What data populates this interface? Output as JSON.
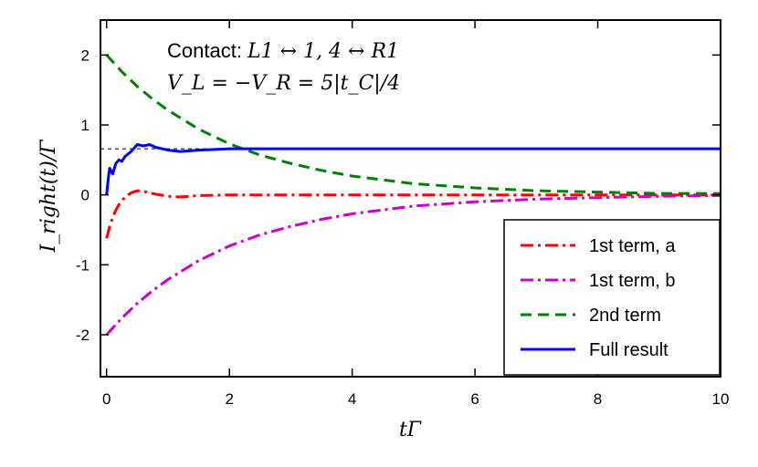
{
  "chart_data": {
    "type": "line",
    "xlabel": "tΓ",
    "ylabel": "I_right(t)/Γ",
    "annotation": {
      "prefix": "Contact: ",
      "contact_math": "L1 ↔ 1, 4 ↔ R1",
      "voltage": "V_L = −V_R = 5|t_C|/4"
    },
    "xlim": [
      -0.1,
      10
    ],
    "ylim": [
      -2.6,
      2.5
    ],
    "xticks": [
      0,
      2,
      4,
      6,
      8,
      10
    ],
    "xtick_labels": [
      "0",
      "2",
      "4",
      "6",
      "8",
      "10"
    ],
    "yticks": [
      -2,
      -1,
      0,
      1,
      2
    ],
    "ytick_labels": [
      "-2",
      "-1",
      "0",
      "1",
      "2"
    ],
    "reference_line_y": 0.66,
    "legend": {
      "position": "bottom-right"
    },
    "series": [
      {
        "name": "1st term, a",
        "color": "#ff0000",
        "dash": "14 5 3 5",
        "x": [
          0,
          0.05,
          0.1,
          0.15,
          0.2,
          0.3,
          0.4,
          0.5,
          0.6,
          0.8,
          1.0,
          1.2,
          1.5,
          2,
          3,
          4,
          5,
          6,
          7,
          8,
          9,
          10
        ],
        "y": [
          -0.62,
          -0.45,
          -0.32,
          -0.22,
          -0.14,
          -0.03,
          0.03,
          0.06,
          0.05,
          0.01,
          -0.02,
          -0.03,
          -0.01,
          0.0,
          0.0,
          0.0,
          0.0,
          0.0,
          0.0,
          0.0,
          0.0,
          0.0
        ]
      },
      {
        "name": "1st term, b",
        "color": "#cc00cc",
        "dash": "14 5 3 5",
        "x": [
          0,
          0.25,
          0.5,
          0.75,
          1,
          1.5,
          2,
          2.5,
          3,
          3.5,
          4,
          5,
          6,
          7,
          8,
          9,
          10
        ],
        "y": [
          -2.0,
          -1.76,
          -1.55,
          -1.37,
          -1.21,
          -0.94,
          -0.73,
          -0.57,
          -0.45,
          -0.35,
          -0.27,
          -0.16,
          -0.1,
          -0.06,
          -0.04,
          -0.02,
          -0.01
        ]
      },
      {
        "name": "2nd term",
        "color": "#008000",
        "dash": "12 7",
        "x": [
          0,
          0.25,
          0.5,
          0.75,
          1,
          1.5,
          2,
          2.5,
          3,
          3.5,
          4,
          5,
          6,
          7,
          8,
          9,
          10
        ],
        "y": [
          2.0,
          1.76,
          1.55,
          1.37,
          1.21,
          0.94,
          0.73,
          0.57,
          0.45,
          0.35,
          0.27,
          0.16,
          0.1,
          0.06,
          0.04,
          0.02,
          0.02
        ]
      },
      {
        "name": "Full result",
        "color": "#0000ff",
        "dash": "",
        "x": [
          0,
          0.03,
          0.05,
          0.1,
          0.15,
          0.2,
          0.25,
          0.3,
          0.4,
          0.5,
          0.6,
          0.7,
          0.8,
          1.0,
          1.2,
          1.5,
          2,
          3,
          4,
          5,
          6,
          7,
          8,
          9,
          10
        ],
        "y": [
          0.0,
          0.25,
          0.38,
          0.3,
          0.45,
          0.5,
          0.48,
          0.55,
          0.62,
          0.72,
          0.7,
          0.72,
          0.68,
          0.64,
          0.62,
          0.64,
          0.66,
          0.66,
          0.66,
          0.66,
          0.66,
          0.66,
          0.66,
          0.66,
          0.66
        ]
      }
    ]
  }
}
